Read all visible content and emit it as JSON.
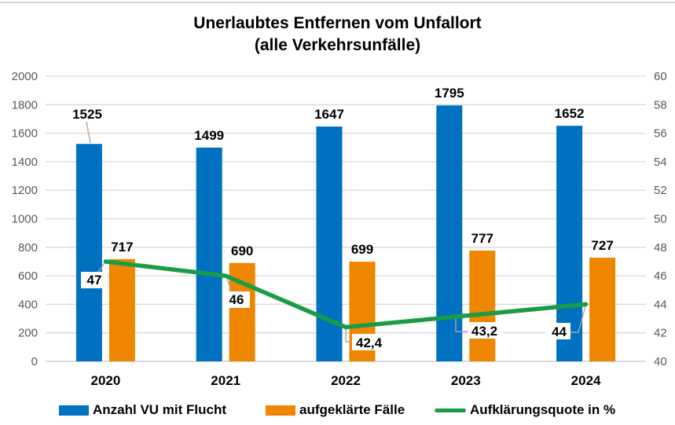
{
  "title": {
    "line1": "Unerlaubtes Entfernen vom Unfallort",
    "line2": "(alle Verkehrsunfälle)"
  },
  "chart_data": {
    "type": "combo-bar-line",
    "categories": [
      "2020",
      "2021",
      "2022",
      "2023",
      "2024"
    ],
    "series": [
      {
        "name": "Anzahl VU mit Flucht",
        "chart_type": "bar",
        "color": "#0070C0",
        "axis": "left",
        "values": [
          1525,
          1499,
          1647,
          1795,
          1652
        ],
        "labels": [
          "1525",
          "1499",
          "1647",
          "1795",
          "1652"
        ]
      },
      {
        "name": "aufgeklärte Fälle",
        "chart_type": "bar",
        "color": "#EE8600",
        "axis": "left",
        "values": [
          717,
          690,
          699,
          777,
          727
        ],
        "labels": [
          "717",
          "690",
          "699",
          "777",
          "727"
        ]
      },
      {
        "name": "Aufklärungsquote in %",
        "chart_type": "line",
        "color": "#1A9C47",
        "axis": "right",
        "values": [
          47,
          46,
          42.4,
          43.2,
          44
        ],
        "labels": [
          "47",
          "46",
          "42,4",
          "43,2",
          "44"
        ]
      }
    ],
    "axes": {
      "left": {
        "min": 0,
        "max": 2000,
        "step": 200,
        "tick_labels": [
          "0",
          "200",
          "400",
          "600",
          "800",
          "1000",
          "1200",
          "1400",
          "1600",
          "1800",
          "2000"
        ]
      },
      "right": {
        "min": 40,
        "max": 60,
        "step": 2,
        "tick_labels": [
          "40",
          "42",
          "44",
          "46",
          "48",
          "50",
          "52",
          "54",
          "56",
          "58",
          "60"
        ]
      }
    },
    "grid": true,
    "legend_position": "bottom",
    "styles": {
      "gridline_color": "#D9D9D9",
      "tick_text_color": "#595959",
      "leader_color": "#A6A6A6",
      "label_text_color": "#000000"
    }
  }
}
